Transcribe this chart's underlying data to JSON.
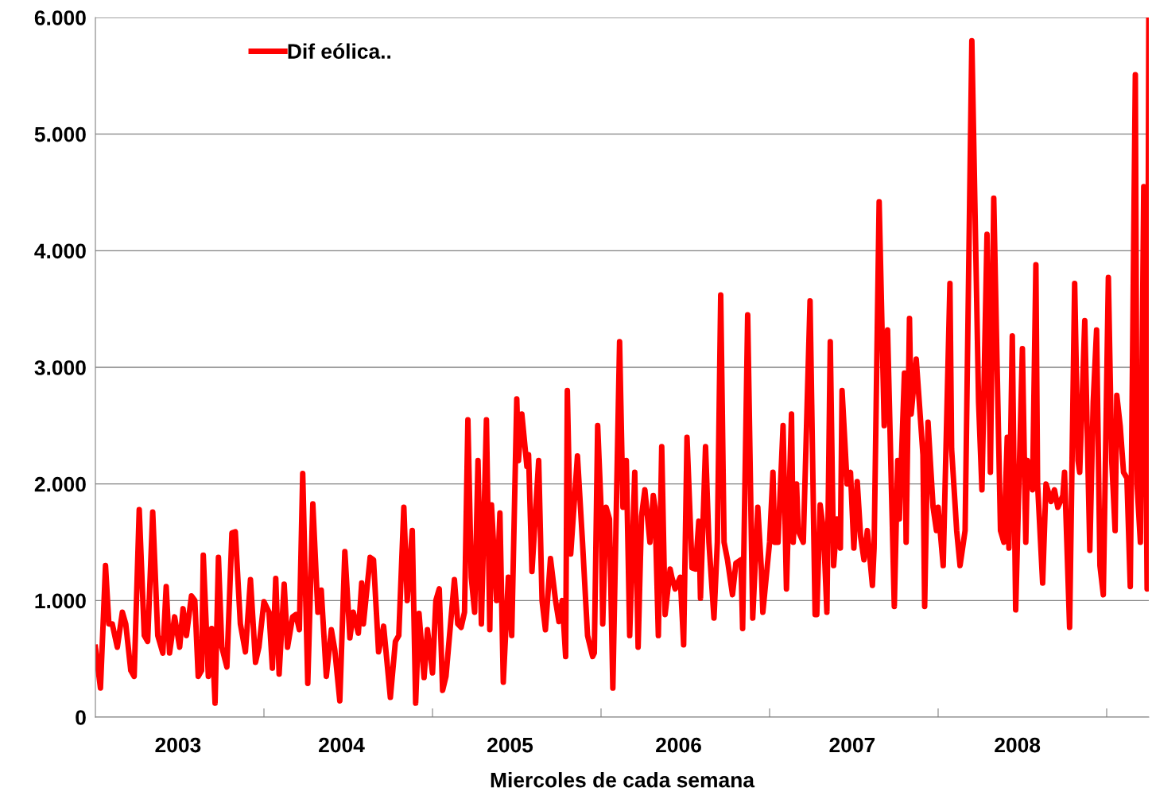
{
  "chart_data": {
    "type": "line",
    "xlabel": "Miercoles de cada semana",
    "xlim": [
      2003.0,
      2009.25
    ],
    "xticks": [
      {
        "value": 2004,
        "label": null
      },
      {
        "value": 2005,
        "label": null
      },
      {
        "value": 2006,
        "label": null
      },
      {
        "value": 2007,
        "label": null
      },
      {
        "value": 2008,
        "label": null
      },
      {
        "value": 2009,
        "label": null
      },
      {
        "value": 2003.49,
        "label": "2003"
      },
      {
        "value": 2004.46,
        "label": "2004"
      },
      {
        "value": 2005.46,
        "label": "2005"
      },
      {
        "value": 2006.46,
        "label": "2006"
      },
      {
        "value": 2007.49,
        "label": "2007"
      },
      {
        "value": 2008.47,
        "label": "2008"
      }
    ],
    "ylim": [
      0,
      6000
    ],
    "yticks": [
      0,
      {
        "value": 1000,
        "label": "1.000"
      },
      {
        "value": 2000,
        "label": "2.000"
      },
      {
        "value": 3000,
        "label": "3.000"
      },
      {
        "value": 4000,
        "label": "4.000"
      },
      {
        "value": 5000,
        "label": "5.000"
      },
      {
        "value": 6000,
        "label": "6.000"
      }
    ],
    "grid": "y",
    "legend": "top left",
    "marker": "none",
    "line_style": "solid",
    "x": [
      2003.0,
      2003.03,
      2003.06,
      2003.08,
      2003.1,
      2003.13,
      2003.16,
      2003.18,
      2003.21,
      2003.23,
      2003.26,
      2003.29,
      2003.31,
      2003.34,
      2003.37,
      2003.4,
      2003.42,
      2003.44,
      2003.47,
      2003.5,
      2003.52,
      2003.54,
      2003.57,
      2003.59,
      2003.61,
      2003.63,
      2003.64,
      2003.67,
      2003.69,
      2003.71,
      2003.73,
      2003.75,
      2003.78,
      2003.81,
      2003.83,
      2003.86,
      2003.89,
      2003.92,
      2003.95,
      2003.97,
      2004.0,
      2004.03,
      2004.05,
      2004.07,
      2004.09,
      2004.12,
      2004.14,
      2004.17,
      2004.19,
      2004.21,
      2004.23,
      2004.26,
      2004.29,
      2004.32,
      2004.34,
      2004.37,
      2004.4,
      2004.42,
      2004.45,
      2004.48,
      2004.51,
      2004.53,
      2004.56,
      2004.58,
      2004.59,
      2004.63,
      2004.65,
      2004.68,
      2004.71,
      2004.75,
      2004.78,
      2004.8,
      2004.83,
      2004.85,
      2004.88,
      2004.9,
      2004.92,
      2004.95,
      2004.97,
      2005.0,
      2005.02,
      2005.04,
      2005.06,
      2005.08,
      2005.13,
      2005.15,
      2005.17,
      2005.19,
      2005.21,
      2005.23,
      2005.25,
      2005.27,
      2005.29,
      2005.32,
      2005.34,
      2005.35,
      2005.38,
      2005.4,
      2005.42,
      2005.45,
      2005.47,
      2005.5,
      2005.51,
      2005.53,
      2005.56,
      2005.57,
      2005.59,
      2005.63,
      2005.65,
      2005.67,
      2005.7,
      2005.73,
      2005.75,
      2005.77,
      2005.79,
      2005.8,
      2005.82,
      2005.86,
      2005.89,
      2005.92,
      2005.95,
      2005.96,
      2005.98,
      2006.0,
      2006.01,
      2006.03,
      2006.05,
      2006.07,
      2006.11,
      2006.13,
      2006.15,
      2006.17,
      2006.2,
      2006.22,
      2006.24,
      2006.26,
      2006.29,
      2006.31,
      2006.32,
      2006.34,
      2006.36,
      2006.38,
      2006.41,
      2006.42,
      2006.44,
      2006.47,
      2006.49,
      2006.51,
      2006.54,
      2006.56,
      2006.58,
      2006.59,
      2006.62,
      2006.64,
      2006.67,
      2006.69,
      2006.71,
      2006.73,
      2006.75,
      2006.78,
      2006.8,
      2006.83,
      2006.84,
      2006.87,
      2006.89,
      2006.9,
      2006.93,
      2006.95,
      2006.96,
      2007.0,
      2007.02,
      2007.03,
      2007.05,
      2007.08,
      2007.1,
      2007.13,
      2007.14,
      2007.16,
      2007.17,
      2007.2,
      2007.24,
      2007.27,
      2007.28,
      2007.3,
      2007.32,
      2007.34,
      2007.36,
      2007.38,
      2007.4,
      2007.42,
      2007.43,
      2007.46,
      2007.48,
      2007.5,
      2007.52,
      2007.54,
      2007.56,
      2007.58,
      2007.61,
      2007.62,
      2007.65,
      2007.68,
      2007.7,
      2007.74,
      2007.76,
      2007.77,
      2007.8,
      2007.81,
      2007.83,
      2007.84,
      2007.87,
      2007.91,
      2007.92,
      2007.94,
      2007.97,
      2007.99,
      2008.0,
      2008.03,
      2008.07,
      2008.08,
      2008.11,
      2008.13,
      2008.14,
      2008.16,
      2008.2,
      2008.24,
      2008.26,
      2008.29,
      2008.31,
      2008.33,
      2008.35,
      2008.37,
      2008.39,
      2008.41,
      2008.42,
      2008.44,
      2008.46,
      2008.5,
      2008.52,
      2008.53,
      2008.56,
      2008.58,
      2008.59,
      2008.62,
      2008.64,
      2008.67,
      2008.69,
      2008.71,
      2008.74,
      2008.75,
      2008.78,
      2008.81,
      2008.83,
      2008.84,
      2008.87,
      2008.9,
      2008.92,
      2008.94,
      2008.96,
      2008.98,
      2009.01,
      2009.03,
      2009.05,
      2009.06,
      2009.08,
      2009.1,
      2009.12,
      2009.14,
      2009.17,
      2009.18,
      2009.2,
      2009.22,
      2009.24,
      2009.25
    ],
    "series": [
      {
        "name": "Dif eólica..",
        "color": "#ff0000",
        "values": [
          600,
          250,
          1300,
          800,
          800,
          600,
          900,
          800,
          400,
          350,
          1780,
          700,
          650,
          1760,
          700,
          550,
          1120,
          550,
          860,
          600,
          930,
          700,
          1040,
          1000,
          350,
          400,
          1390,
          350,
          760,
          120,
          1370,
          600,
          430,
          1580,
          1590,
          800,
          560,
          1180,
          470,
          600,
          990,
          900,
          420,
          1190,
          370,
          1140,
          600,
          860,
          880,
          750,
          2090,
          290,
          1830,
          900,
          1090,
          350,
          750,
          580,
          140,
          1420,
          680,
          900,
          720,
          1150,
          800,
          1370,
          1350,
          560,
          780,
          170,
          650,
          700,
          1800,
          1000,
          1600,
          120,
          890,
          340,
          750,
          380,
          1000,
          1100,
          230,
          350,
          1180,
          800,
          770,
          900,
          2550,
          1200,
          900,
          2200,
          800,
          2550,
          750,
          1820,
          1000,
          1750,
          300,
          1200,
          700,
          2730,
          2200,
          2600,
          2150,
          2250,
          1250,
          2200,
          1000,
          750,
          1360,
          1000,
          820,
          1000,
          520,
          2800,
          1400,
          2240,
          1500,
          700,
          520,
          550,
          2500,
          1800,
          800,
          1800,
          1700,
          250,
          3220,
          1800,
          2200,
          700,
          2100,
          600,
          1720,
          1950,
          1500,
          1900,
          1800,
          700,
          2320,
          880,
          1270,
          1200,
          1100,
          1200,
          620,
          2400,
          1280,
          1270,
          1680,
          1020,
          2320,
          1500,
          850,
          1500,
          3620,
          1500,
          1350,
          1050,
          1320,
          1350,
          760,
          3450,
          1700,
          850,
          1800,
          1300,
          900,
          1500,
          2100,
          1500,
          1500,
          2500,
          1100,
          2600,
          1500,
          2000,
          1600,
          1500,
          3570,
          880,
          880,
          1820,
          1600,
          900,
          3220,
          1300,
          1700,
          1450,
          2800,
          2000,
          2100,
          1450,
          2020,
          1550,
          1350,
          1600,
          1130,
          1450,
          4420,
          2500,
          3320,
          950,
          2200,
          1700,
          2950,
          1500,
          3420,
          2600,
          3070,
          2250,
          950,
          2530,
          1800,
          1600,
          1800,
          1300,
          3720,
          2300,
          1600,
          1300,
          1400,
          1600,
          5800,
          2700,
          1950,
          4140,
          2100,
          4450,
          3000,
          1600,
          1500,
          2400,
          1450,
          3270,
          920,
          3160,
          1500,
          2200,
          1950,
          3880,
          2000,
          1150,
          2000,
          1850,
          1950,
          1800,
          1900,
          2100,
          770,
          3720,
          2200,
          2100,
          3400,
          1430,
          2700,
          3320,
          1300,
          1050,
          3770,
          2200,
          1600,
          2760,
          2500,
          2100,
          2050,
          1120,
          5510,
          2000,
          1500,
          4550,
          1100,
          6000
        ]
      }
    ]
  }
}
